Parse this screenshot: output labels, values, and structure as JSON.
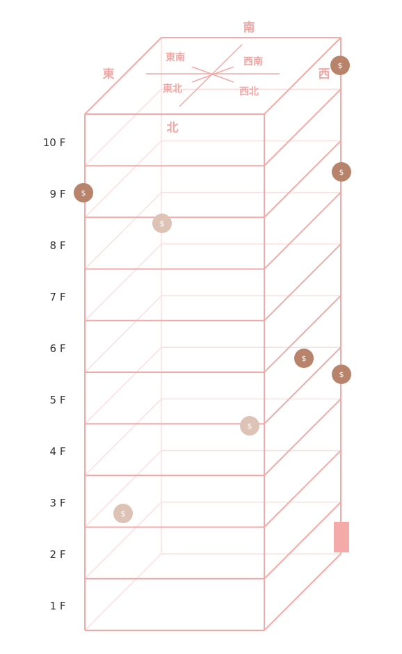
{
  "colors": {
    "edge": "#f0aaa8",
    "edge_back": "#fbe0df",
    "label": "#f2a7a5",
    "floor_text": "#333333",
    "coin_dark": "#b8836b",
    "coin_light": "#ddc3b6",
    "marker": "#f4aaa9"
  },
  "compass": {
    "south": "南",
    "east": "東",
    "west": "西",
    "north": "北",
    "southeast": "東南",
    "southwest": "西南",
    "northeast": "東北",
    "northwest": "西北"
  },
  "floors": [
    "10 F",
    "9 F",
    "8 F",
    "7 F",
    "6 F",
    "5 F",
    "4 F",
    "3 F",
    "2 F",
    "1 F"
  ],
  "coin_symbol": "$",
  "coins": [
    {
      "id": "coin-west-top",
      "style": "dark"
    },
    {
      "id": "coin-west-9f",
      "style": "dark"
    },
    {
      "id": "coin-east-9f",
      "style": "dark"
    },
    {
      "id": "coin-inside-8f",
      "style": "light"
    },
    {
      "id": "coin-right-6f",
      "style": "dark"
    },
    {
      "id": "coin-west-5f",
      "style": "dark"
    },
    {
      "id": "coin-inside-5f",
      "style": "light"
    },
    {
      "id": "coin-inside-3f",
      "style": "light"
    }
  ],
  "marker": {
    "label": "entrance-marker"
  }
}
